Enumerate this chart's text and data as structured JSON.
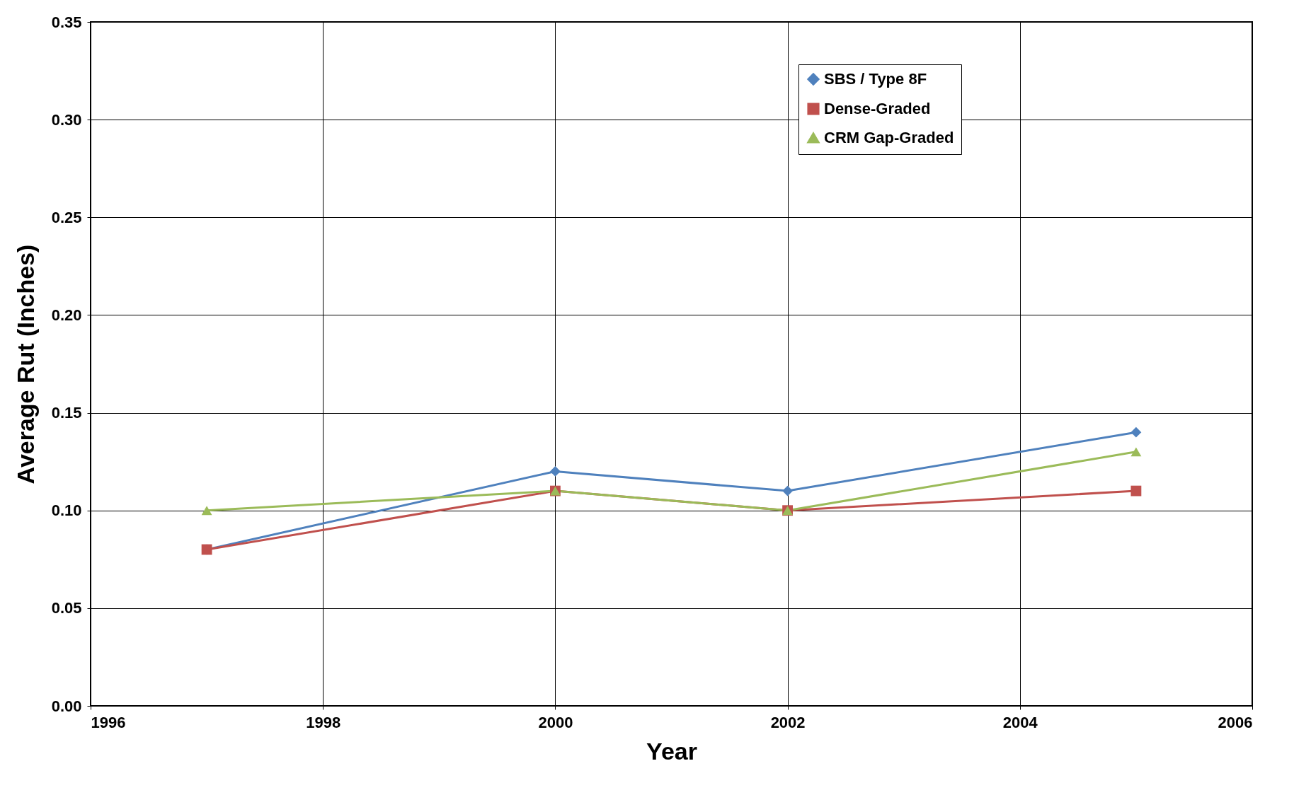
{
  "chart_data": {
    "type": "line",
    "xlabel": "Year",
    "ylabel": "Average Rut (Inches)",
    "x": [
      1997,
      2000,
      2002,
      2005
    ],
    "series": [
      {
        "name": "SBS / Type 8F",
        "color": "#4f81bd",
        "marker": "diamond",
        "values": [
          0.08,
          0.12,
          0.11,
          0.14
        ]
      },
      {
        "name": "Dense-Graded",
        "color": "#c0504d",
        "marker": "square",
        "values": [
          0.08,
          0.11,
          0.1,
          0.11
        ]
      },
      {
        "name": "CRM Gap-Graded",
        "color": "#9bbb59",
        "marker": "triangle",
        "values": [
          0.1,
          0.11,
          0.1,
          0.13
        ]
      }
    ],
    "xlim": [
      1996,
      2006
    ],
    "xticks": [
      1996,
      1998,
      2000,
      2002,
      2004,
      2006
    ],
    "ylim": [
      0,
      0.35
    ],
    "yticks": [
      {
        "value": 0,
        "label": "0.00"
      },
      {
        "value": 0.05,
        "label": "0.05"
      },
      {
        "value": 0.1,
        "label": "0.10"
      },
      {
        "value": 0.15,
        "label": "0.15"
      },
      {
        "value": 0.2,
        "label": "0.20"
      },
      {
        "value": 0.25,
        "label": "0.25"
      },
      {
        "value": 0.3,
        "label": "0.30"
      },
      {
        "value": 0.35,
        "label": "0.35"
      }
    ],
    "grid": true,
    "legend": "top right",
    "line_style": "solid"
  }
}
